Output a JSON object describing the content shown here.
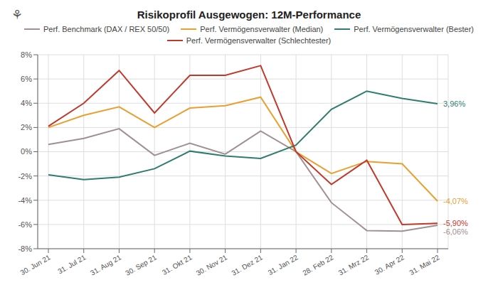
{
  "chart_data": {
    "type": "line",
    "title": "Risikoprofil Ausgewogen: 12M-Performance",
    "categories": [
      "30. Jun 21",
      "31. Jul 21",
      "31. Aug 21",
      "30. Sep 21",
      "31. Okt 21",
      "30. Nov 21",
      "31. Dez 21",
      "31. Jan 22",
      "28. Feb 22",
      "31. Mrz 22",
      "30. Apr 22",
      "31. Mai 22"
    ],
    "series": [
      {
        "name": "Perf. Benchmark (DAX / REX 50/50)",
        "color": "#a09090",
        "values": [
          0.6,
          1.1,
          1.9,
          -0.3,
          0.7,
          -0.2,
          1.7,
          0.0,
          -4.2,
          -6.5,
          -6.55,
          -6.06
        ],
        "value_labels": [
          null,
          null,
          null,
          null,
          null,
          null,
          null,
          null,
          null,
          null,
          null,
          "-6,06%"
        ]
      },
      {
        "name": "Perf. Vermögensverwalter (Median)",
        "color": "#e8a030",
        "values": [
          2.0,
          3.0,
          3.7,
          2.0,
          3.6,
          3.8,
          4.5,
          0.0,
          -1.8,
          -0.8,
          -1.0,
          -4.07
        ],
        "value_labels": [
          null,
          null,
          null,
          null,
          null,
          null,
          null,
          null,
          null,
          null,
          null,
          "-4,07%"
        ]
      },
      {
        "name": "Perf. Vermögensverwalter (Bester)",
        "color": "#2e7d6e",
        "values": [
          -1.9,
          -2.3,
          -2.1,
          -1.4,
          0.05,
          -0.35,
          -0.55,
          0.55,
          3.5,
          5.0,
          4.4,
          3.96
        ],
        "value_labels": [
          null,
          null,
          null,
          null,
          null,
          null,
          null,
          null,
          null,
          null,
          null,
          "3,96%"
        ]
      },
      {
        "name": "Perf. Vermögensverwalter (Schlechtester)",
        "color": "#c0392b",
        "values": [
          2.1,
          4.0,
          6.7,
          3.2,
          6.3,
          6.3,
          7.1,
          0.0,
          -2.7,
          -0.7,
          -6.0,
          -5.9
        ],
        "value_labels": [
          null,
          null,
          null,
          null,
          null,
          null,
          null,
          null,
          null,
          null,
          null,
          "-5,90%"
        ]
      }
    ],
    "ylim": [
      -8,
      8
    ],
    "yticks": [
      {
        "value": -8,
        "label": "-8%"
      },
      {
        "value": -6,
        "label": "-6%"
      },
      {
        "value": -4,
        "label": "-4%"
      },
      {
        "value": -2,
        "label": "-2%"
      },
      {
        "value": 0,
        "label": "0%"
      },
      {
        "value": 2,
        "label": "2%"
      },
      {
        "value": 4,
        "label": "4%"
      },
      {
        "value": 6,
        "label": "6%"
      },
      {
        "value": 8,
        "label": "8%"
      }
    ],
    "grid": true,
    "legend": "top",
    "annotations": [
      {
        "text": "⚘"
      }
    ]
  }
}
